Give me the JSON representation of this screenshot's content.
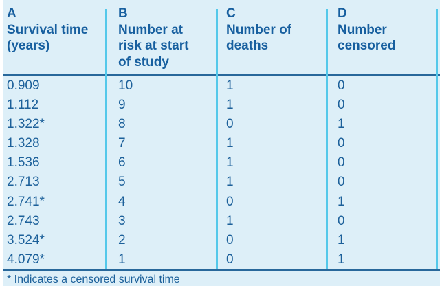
{
  "colors": {
    "panel_background": "#ddeff8",
    "text_blue": "#1c609a",
    "header_text_blue": "#175f9f",
    "column_divider_cyan": "#54c8ea",
    "rule_dark_blue": "#28689b"
  },
  "table": {
    "columns": [
      {
        "id": "A",
        "label": "Survival time (years)"
      },
      {
        "id": "B",
        "label": "Number at risk at start of study"
      },
      {
        "id": "C",
        "label": "Number of deaths"
      },
      {
        "id": "D",
        "label": "Number censored"
      }
    ],
    "rows": [
      [
        "0.909",
        "10",
        "1",
        "0"
      ],
      [
        "1.112",
        "9",
        "1",
        "0"
      ],
      [
        "1.322*",
        "8",
        "0",
        "1"
      ],
      [
        "1.328",
        "7",
        "1",
        "0"
      ],
      [
        "1.536",
        "6",
        "1",
        "0"
      ],
      [
        "2.713",
        "5",
        "1",
        "0"
      ],
      [
        "2.741*",
        "4",
        "0",
        "1"
      ],
      [
        "2.743",
        "3",
        "1",
        "0"
      ],
      [
        "3.524*",
        "2",
        "0",
        "1"
      ],
      [
        "4.079*",
        "1",
        "0",
        "1"
      ]
    ],
    "footnote": "* Indicates a censored survival time"
  }
}
